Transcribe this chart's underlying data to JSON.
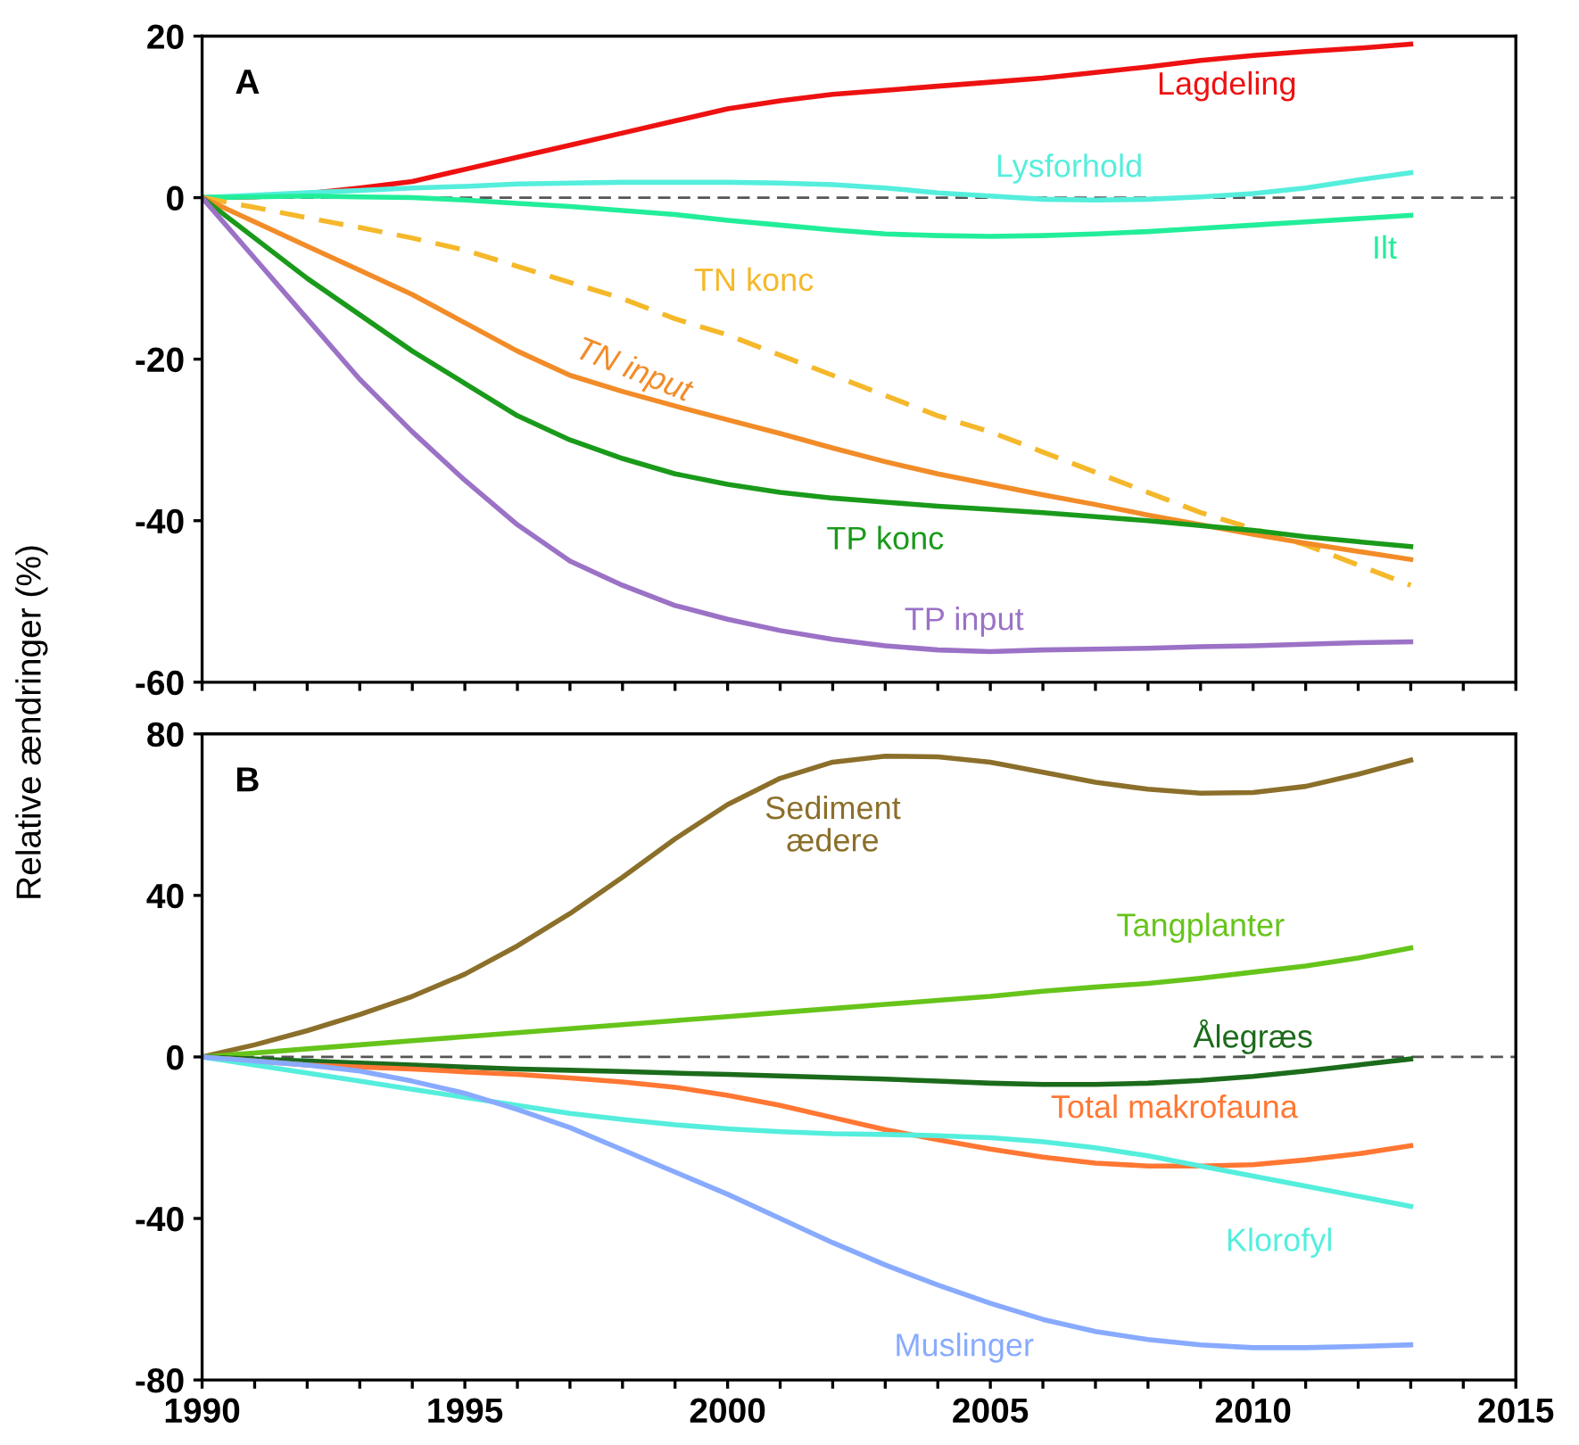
{
  "chart_data": [
    {
      "type": "line",
      "ylabel": "Relative ændringer (%)",
      "annotations": [
        "A"
      ],
      "tick_labels": "y",
      "grid": false,
      "legend": false,
      "marker": "none",
      "x": [
        1990,
        1991,
        1992,
        1993,
        1994,
        1995,
        1996,
        1997,
        1998,
        1999,
        2000,
        2001,
        2002,
        2003,
        2004,
        2005,
        2006,
        2007,
        2008,
        2009,
        2010,
        2011,
        2012,
        2013
      ],
      "xlim": [
        1990,
        2015
      ],
      "xticks": [
        1990,
        {
          "value": 1991,
          "label": null
        },
        {
          "value": 1992,
          "label": null
        },
        {
          "value": 1993,
          "label": null
        },
        {
          "value": 1994,
          "label": null
        },
        1995,
        {
          "value": 1996,
          "label": null
        },
        {
          "value": 1997,
          "label": null
        },
        {
          "value": 1998,
          "label": null
        },
        {
          "value": 1999,
          "label": null
        },
        2000,
        {
          "value": 2001,
          "label": null
        },
        {
          "value": 2002,
          "label": null
        },
        {
          "value": 2003,
          "label": null
        },
        {
          "value": 2004,
          "label": null
        },
        2005,
        {
          "value": 2006,
          "label": null
        },
        {
          "value": 2007,
          "label": null
        },
        {
          "value": 2008,
          "label": null
        },
        {
          "value": 2009,
          "label": null
        },
        2010,
        {
          "value": 2011,
          "label": null
        },
        {
          "value": 2012,
          "label": null
        },
        {
          "value": 2013,
          "label": null
        },
        {
          "value": 2014,
          "label": null
        },
        2015
      ],
      "ylim": [
        -60,
        20
      ],
      "yticks": [
        -60,
        -40,
        -20,
        0,
        20
      ],
      "ref_lines": [
        {
          "axis": "y",
          "value": 0,
          "color": "#555555",
          "line_style": "dashed"
        }
      ],
      "series": [
        {
          "name": "Lagdeling",
          "color": "#ee1111",
          "values": [
            0,
            0.1,
            0.5,
            1.2,
            2,
            3.5,
            5,
            6.5,
            8,
            9.5,
            11,
            12,
            12.8,
            13.3,
            13.8,
            14.3,
            14.8,
            15.5,
            16.2,
            17,
            17.6,
            18.1,
            18.5,
            19
          ]
        },
        {
          "name": "Lysforhold",
          "color": "#55eedd",
          "values": [
            0,
            0.3,
            0.6,
            0.9,
            1.2,
            1.4,
            1.7,
            1.8,
            1.9,
            1.9,
            1.9,
            1.8,
            1.6,
            1.2,
            0.6,
            0.2,
            -0.2,
            -0.3,
            -0.2,
            0.1,
            0.5,
            1.2,
            2.2,
            3.1
          ]
        },
        {
          "name": "Ilt",
          "color": "#22ee99",
          "values": [
            0,
            0.1,
            0.2,
            0.1,
            0,
            -0.3,
            -0.7,
            -1.1,
            -1.6,
            -2.1,
            -2.8,
            -3.4,
            -4,
            -4.5,
            -4.7,
            -4.8,
            -4.7,
            -4.5,
            -4.2,
            -3.8,
            -3.4,
            -3,
            -2.6,
            -2.2
          ]
        },
        {
          "name": "TN konc",
          "color": "#f5b82a",
          "line_style": "dashed",
          "values": [
            0,
            -1.2,
            -2.5,
            -3.7,
            -5,
            -6.5,
            -8.5,
            -10.5,
            -12.5,
            -15,
            -17,
            -19.5,
            -22,
            -24.5,
            -27,
            -29,
            -31.5,
            -34,
            -36.5,
            -39,
            -41,
            -43,
            -45.5,
            -48
          ]
        },
        {
          "name": "TN input",
          "color": "#f28c28",
          "values": [
            0,
            -3,
            -6,
            -9,
            -12,
            -15.5,
            -19,
            -22,
            -24,
            -25.8,
            -27.5,
            -29.2,
            -31,
            -32.7,
            -34.2,
            -35.5,
            -36.8,
            -38,
            -39.3,
            -40.5,
            -41.7,
            -42.8,
            -43.8,
            -44.8
          ]
        },
        {
          "name": "TP konc",
          "color": "#1a9a1a",
          "values": [
            0,
            -5,
            -10,
            -14.5,
            -19,
            -23,
            -27,
            -30,
            -32.3,
            -34.2,
            -35.5,
            -36.5,
            -37.2,
            -37.7,
            -38.2,
            -38.6,
            -39,
            -39.5,
            -40,
            -40.6,
            -41.2,
            -42,
            -42.6,
            -43.2
          ]
        },
        {
          "name": "TP input",
          "color": "#9b72c6",
          "values": [
            0,
            -7.5,
            -15,
            -22.5,
            -29,
            -35,
            -40.5,
            -45,
            -48,
            -50.5,
            -52.2,
            -53.6,
            -54.7,
            -55.5,
            -56,
            -56.2,
            -56,
            -55.9,
            -55.8,
            -55.6,
            -55.5,
            -55.3,
            -55.1,
            -55
          ]
        }
      ]
    },
    {
      "type": "line",
      "annotations": [
        "B"
      ],
      "grid": false,
      "legend": false,
      "marker": "none",
      "x": [
        1990,
        1991,
        1992,
        1993,
        1994,
        1995,
        1996,
        1997,
        1998,
        1999,
        2000,
        2001,
        2002,
        2003,
        2004,
        2005,
        2006,
        2007,
        2008,
        2009,
        2010,
        2011,
        2012,
        2013
      ],
      "xlim": [
        1990,
        2015
      ],
      "xticks": [
        1990,
        {
          "value": 1991,
          "label": null
        },
        {
          "value": 1992,
          "label": null
        },
        {
          "value": 1993,
          "label": null
        },
        {
          "value": 1994,
          "label": null
        },
        1995,
        {
          "value": 1996,
          "label": null
        },
        {
          "value": 1997,
          "label": null
        },
        {
          "value": 1998,
          "label": null
        },
        {
          "value": 1999,
          "label": null
        },
        2000,
        {
          "value": 2001,
          "label": null
        },
        {
          "value": 2002,
          "label": null
        },
        {
          "value": 2003,
          "label": null
        },
        {
          "value": 2004,
          "label": null
        },
        2005,
        {
          "value": 2006,
          "label": null
        },
        {
          "value": 2007,
          "label": null
        },
        {
          "value": 2008,
          "label": null
        },
        {
          "value": 2009,
          "label": null
        },
        2010,
        {
          "value": 2011,
          "label": null
        },
        {
          "value": 2012,
          "label": null
        },
        {
          "value": 2013,
          "label": null
        },
        {
          "value": 2014,
          "label": null
        },
        2015
      ],
      "ylim": [
        -80,
        80
      ],
      "yticks": [
        -80,
        -40,
        0,
        40,
        80
      ],
      "ref_lines": [
        {
          "axis": "y",
          "value": 0,
          "color": "#555555",
          "line_style": "dashed"
        }
      ],
      "series": [
        {
          "name": "Sediment\nædere",
          "color": "#8b6f2a",
          "values": [
            0,
            3,
            6.5,
            10.5,
            15,
            20.5,
            27.5,
            35.5,
            44.5,
            54,
            62.5,
            69,
            73,
            74.5,
            74.3,
            73,
            70.5,
            68,
            66.3,
            65.3,
            65.5,
            67,
            70,
            73.5
          ]
        },
        {
          "name": "Tangplanter",
          "color": "#66c41a",
          "values": [
            0,
            1,
            2,
            3,
            4,
            5,
            6,
            7,
            8,
            9,
            10,
            11,
            12,
            13,
            14,
            15,
            16.3,
            17.3,
            18.2,
            19.5,
            21,
            22.5,
            24.5,
            27
          ]
        },
        {
          "name": "Ålegræs",
          "color": "#1b6b1b",
          "values": [
            0,
            -0.5,
            -1,
            -1.5,
            -2,
            -2.5,
            -3,
            -3.3,
            -3.6,
            -4,
            -4.3,
            -4.7,
            -5.1,
            -5.5,
            -6,
            -6.5,
            -6.8,
            -6.8,
            -6.5,
            -5.8,
            -4.8,
            -3.5,
            -2,
            -0.5
          ]
        },
        {
          "name": "Total makrofauna",
          "color": "#ff7733",
          "values": [
            0,
            -1,
            -2,
            -2.5,
            -3,
            -3.7,
            -4.3,
            -5.2,
            -6.2,
            -7.5,
            -9.5,
            -12,
            -15,
            -18,
            -20.5,
            -22.8,
            -24.8,
            -26.3,
            -27,
            -27,
            -26.7,
            -25.5,
            -24,
            -22
          ]
        },
        {
          "name": "Klorofyl",
          "color": "#55eedd",
          "values": [
            0,
            -2,
            -4,
            -6,
            -8,
            -10,
            -12,
            -14,
            -15.5,
            -16.8,
            -17.8,
            -18.5,
            -19,
            -19.2,
            -19.5,
            -20,
            -21,
            -22.5,
            -24.5,
            -27,
            -29.5,
            -32,
            -34.5,
            -37
          ]
        },
        {
          "name": "Muslinger",
          "color": "#88aaff",
          "values": [
            0,
            -1,
            -2,
            -3.5,
            -6,
            -9,
            -13,
            -17.5,
            -23,
            -28.5,
            -34,
            -40,
            -46,
            -51.5,
            -56.5,
            -61,
            -65,
            -68,
            -70,
            -71.3,
            -72,
            -72,
            -71.7,
            -71.3
          ]
        }
      ]
    }
  ]
}
